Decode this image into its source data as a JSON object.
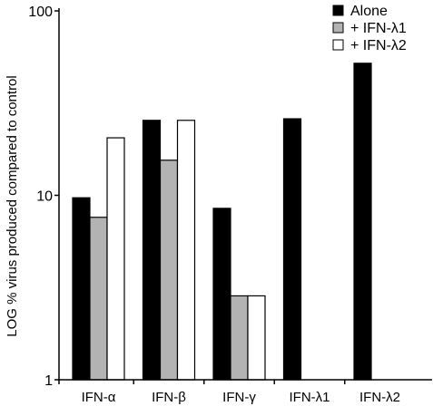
{
  "chart_data": {
    "type": "bar",
    "y_scale": "log",
    "ylim": [
      1,
      100
    ],
    "ylabel": "LOG % virus produced compared to control",
    "xlabel": "",
    "grid": false,
    "legend_position": "top-right",
    "categories": [
      "IFN-α",
      "IFN-β",
      "IFN-γ",
      "IFN-λ1",
      "IFN-λ2"
    ],
    "series": [
      {
        "name": "Alone",
        "color": "#000000",
        "values": [
          9.7,
          25.5,
          8.5,
          26,
          52
        ]
      },
      {
        "name": "+ IFN-λ1",
        "color": "#b3b3b3",
        "values": [
          7.6,
          15.5,
          2.85,
          null,
          null
        ]
      },
      {
        "name": "+ IFN-λ2",
        "color": "#ffffff",
        "values": [
          20.5,
          25.5,
          2.85,
          null,
          null
        ]
      }
    ],
    "y_ticks": [
      {
        "value": 1,
        "label": "1"
      },
      {
        "value": 10,
        "label": "10"
      },
      {
        "value": 100,
        "label": "100"
      }
    ]
  }
}
